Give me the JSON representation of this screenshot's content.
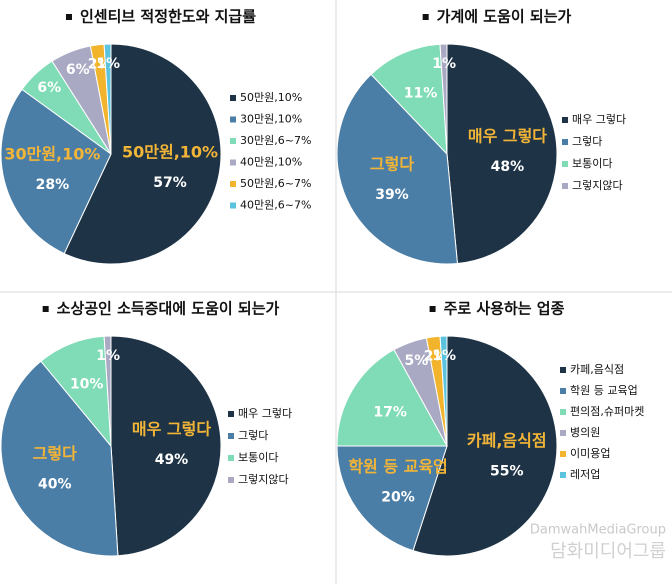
{
  "chart_data": [
    {
      "type": "pie",
      "title": "인센티브 적정한도와 지급률",
      "categories": [
        "50만원,10%",
        "30만원,10%",
        "30만원,6~7%",
        "40만원,10%",
        "50만원,6~7%",
        "40만원,6~7%"
      ],
      "values": [
        57,
        28,
        6,
        6,
        2,
        1
      ],
      "value_labels": [
        "57%",
        "28%",
        "6%",
        "6%",
        "2%",
        "1%"
      ],
      "callouts": [
        "50만원,10%",
        "30만원,10%",
        null,
        null,
        null,
        null
      ],
      "colors": [
        "#1e3446",
        "#4b7ea6",
        "#7fdcb6",
        "#a9a9c4",
        "#f2b42c",
        "#5bc3de"
      ]
    },
    {
      "type": "pie",
      "title": "가계에 도움이 되는가",
      "categories": [
        "매우 그렇다",
        "그렇다",
        "보통이다",
        "그렇지않다"
      ],
      "values": [
        48,
        39,
        11,
        1
      ],
      "value_labels": [
        "48%",
        "39%",
        "11%",
        "1%"
      ],
      "callouts": [
        "매우 그렇다",
        "그렇다",
        null,
        null
      ],
      "colors": [
        "#1e3446",
        "#4b7ea6",
        "#7fdcb6",
        "#a9a9c4"
      ]
    },
    {
      "type": "pie",
      "title": "소상공인 소득증대에 도움이 되는가",
      "categories": [
        "매우 그렇다",
        "그렇다",
        "보통이다",
        "그렇지않다"
      ],
      "values": [
        49,
        40,
        10,
        1
      ],
      "value_labels": [
        "49%",
        "40%",
        "10%",
        "1%"
      ],
      "callouts": [
        "매우 그렇다",
        "그렇다",
        null,
        null
      ],
      "colors": [
        "#1e3446",
        "#4b7ea6",
        "#7fdcb6",
        "#a9a9c4"
      ]
    },
    {
      "type": "pie",
      "title": "주로 사용하는 업종",
      "categories": [
        "카페,음식점",
        "학원 등 교육업",
        "편의점,슈퍼마켓",
        "병의원",
        "이미용업",
        "레저업"
      ],
      "values": [
        55,
        20,
        17,
        5,
        2,
        1
      ],
      "value_labels": [
        "55%",
        "20%",
        "17%",
        "5%",
        "2%",
        "1%"
      ],
      "callouts": [
        "카페,음식점",
        "학원 등 교육업",
        null,
        null,
        null,
        null
      ],
      "colors": [
        "#1e3446",
        "#4b7ea6",
        "#7fdcb6",
        "#a9a9c4",
        "#f2b42c",
        "#5bc3de"
      ]
    }
  ],
  "watermark": [
    "DamwahMediaGroup",
    "담화미디어그룹"
  ]
}
